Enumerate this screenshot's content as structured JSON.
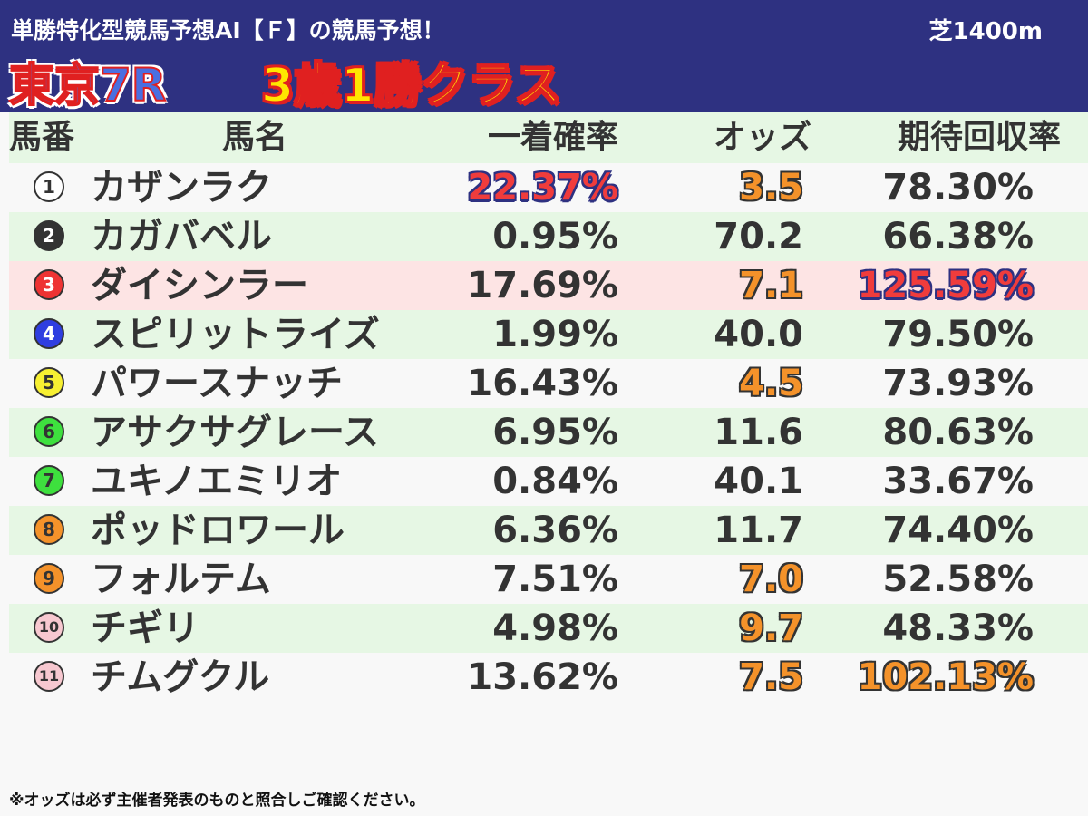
{
  "header": {
    "subtitle": "単勝特化型競馬予想AI【Ｆ】の競馬予想！",
    "distance": "芝1400m",
    "race_name": "東京7R",
    "race_class": "3歳1勝クラス"
  },
  "table": {
    "columns": [
      "馬番",
      "馬名",
      "一着確率",
      "オッズ",
      "期待回収率"
    ],
    "rows": [
      {
        "num": "1",
        "name": "カザンラク",
        "prob": "22.37%",
        "odds": "3.5",
        "ret": "78.30%",
        "badge_bg": "#ffffff",
        "badge_fg": "#333333",
        "prob_style": "red",
        "odds_style": "orange",
        "ret_style": "plain",
        "row_style": "odd"
      },
      {
        "num": "2",
        "name": "カガバベル",
        "prob": "0.95%",
        "odds": "70.2",
        "ret": "66.38%",
        "badge_bg": "#333333",
        "badge_fg": "#ffffff",
        "prob_style": "plain",
        "odds_style": "plain",
        "ret_style": "plain",
        "row_style": "even"
      },
      {
        "num": "3",
        "name": "ダイシンラー",
        "prob": "17.69%",
        "odds": "7.1",
        "ret": "125.59%",
        "badge_bg": "#ee3333",
        "badge_fg": "#ffffff",
        "prob_style": "plain",
        "odds_style": "orange",
        "ret_style": "red",
        "row_style": "hl"
      },
      {
        "num": "4",
        "name": "スピリットライズ",
        "prob": "1.99%",
        "odds": "40.0",
        "ret": "79.50%",
        "badge_bg": "#2f3ee0",
        "badge_fg": "#ffffff",
        "prob_style": "plain",
        "odds_style": "plain",
        "ret_style": "plain",
        "row_style": "even"
      },
      {
        "num": "5",
        "name": "パワースナッチ",
        "prob": "16.43%",
        "odds": "4.5",
        "ret": "73.93%",
        "badge_bg": "#f7f032",
        "badge_fg": "#333333",
        "prob_style": "plain",
        "odds_style": "orange",
        "ret_style": "plain",
        "row_style": "odd"
      },
      {
        "num": "6",
        "name": "アサクサグレース",
        "prob": "6.95%",
        "odds": "11.6",
        "ret": "80.63%",
        "badge_bg": "#3ee03e",
        "badge_fg": "#333333",
        "prob_style": "plain",
        "odds_style": "plain",
        "ret_style": "plain",
        "row_style": "even"
      },
      {
        "num": "7",
        "name": "ユキノエミリオ",
        "prob": "0.84%",
        "odds": "40.1",
        "ret": "33.67%",
        "badge_bg": "#3ee03e",
        "badge_fg": "#333333",
        "prob_style": "plain",
        "odds_style": "plain",
        "ret_style": "plain",
        "row_style": "odd"
      },
      {
        "num": "8",
        "name": "ポッドロワール",
        "prob": "6.36%",
        "odds": "11.7",
        "ret": "74.40%",
        "badge_bg": "#f4922a",
        "badge_fg": "#333333",
        "prob_style": "plain",
        "odds_style": "plain",
        "ret_style": "plain",
        "row_style": "even"
      },
      {
        "num": "9",
        "name": "フォルテム",
        "prob": "7.51%",
        "odds": "7.0",
        "ret": "52.58%",
        "badge_bg": "#f4922a",
        "badge_fg": "#333333",
        "prob_style": "plain",
        "odds_style": "orange",
        "ret_style": "plain",
        "row_style": "odd"
      },
      {
        "num": "10",
        "name": "チギリ",
        "prob": "4.98%",
        "odds": "9.7",
        "ret": "48.33%",
        "badge_bg": "#f7c8d0",
        "badge_fg": "#333333",
        "prob_style": "plain",
        "odds_style": "orange",
        "ret_style": "plain",
        "row_style": "even"
      },
      {
        "num": "11",
        "name": "チムグクル",
        "prob": "13.62%",
        "odds": "7.5",
        "ret": "102.13%",
        "badge_bg": "#f7c8d0",
        "badge_fg": "#333333",
        "prob_style": "plain",
        "odds_style": "orange",
        "ret_style": "orange",
        "row_style": "odd"
      }
    ]
  },
  "footnote": "※オッズは必ず主催者発表のものと照合しご確認ください。"
}
